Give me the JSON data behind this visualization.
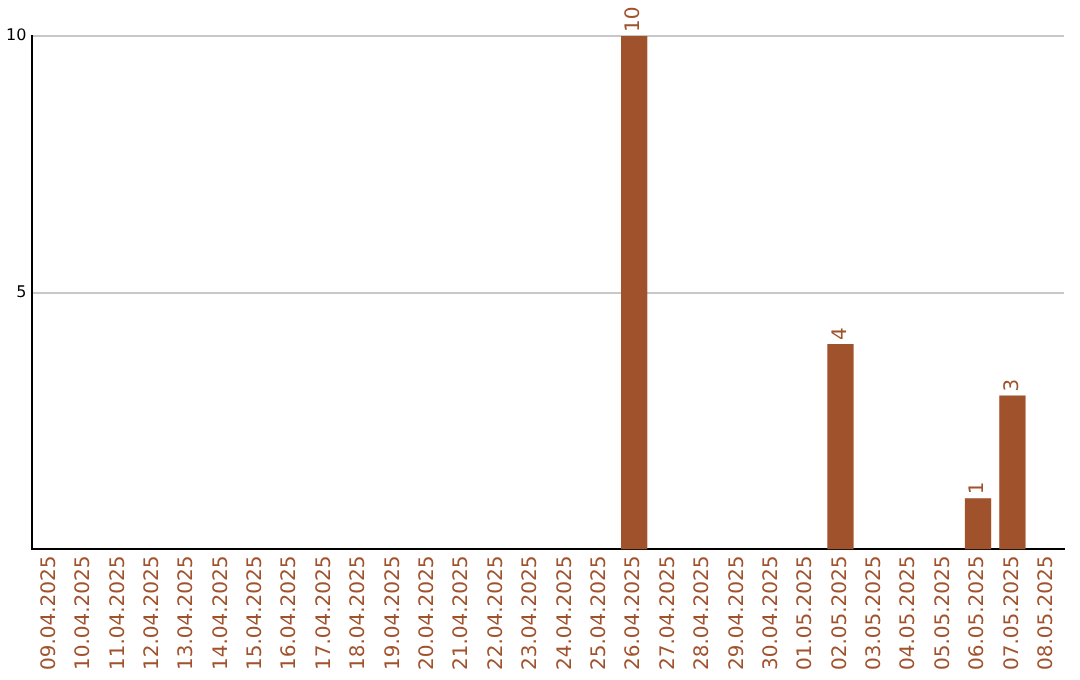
{
  "chart_data": {
    "type": "bar",
    "categories": [
      "09.04.2025",
      "10.04.2025",
      "11.04.2025",
      "12.04.2025",
      "13.04.2025",
      "14.04.2025",
      "15.04.2025",
      "16.04.2025",
      "17.04.2025",
      "18.04.2025",
      "19.04.2025",
      "20.04.2025",
      "21.04.2025",
      "22.04.2025",
      "23.04.2025",
      "24.04.2025",
      "25.04.2025",
      "26.04.2025",
      "27.04.2025",
      "28.04.2025",
      "29.04.2025",
      "30.04.2025",
      "01.05.2025",
      "02.05.2025",
      "03.05.2025",
      "04.05.2025",
      "05.05.2025",
      "06.05.2025",
      "07.05.2025",
      "08.05.2025"
    ],
    "values": [
      0,
      0,
      0,
      0,
      0,
      0,
      0,
      0,
      0,
      0,
      0,
      0,
      0,
      0,
      0,
      0,
      0,
      10,
      0,
      0,
      0,
      0,
      0,
      4,
      0,
      0,
      0,
      1,
      3,
      0
    ],
    "value_labels": [
      null,
      null,
      null,
      null,
      null,
      null,
      null,
      null,
      null,
      null,
      null,
      null,
      null,
      null,
      null,
      null,
      null,
      "10",
      null,
      null,
      null,
      null,
      null,
      "4",
      null,
      null,
      null,
      "1",
      "3",
      null
    ],
    "color": "#a0522d",
    "ylim": [
      0,
      10
    ],
    "yticks": [
      5,
      10
    ],
    "grid": "y",
    "legend": false
  }
}
